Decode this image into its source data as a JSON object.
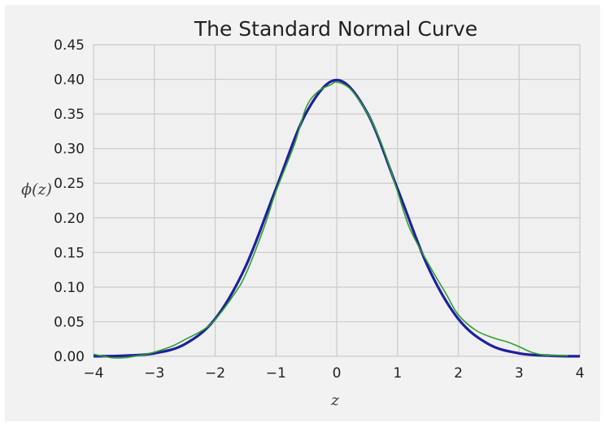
{
  "chart_data": {
    "type": "line",
    "title": "The Standard Normal Curve",
    "xlabel": "z",
    "ylabel": "ϕ(z)",
    "xlim": [
      -4,
      4
    ],
    "ylim": [
      0,
      0.45
    ],
    "x_ticks": [
      -4,
      -3,
      -2,
      -1,
      0,
      1,
      2,
      3,
      4
    ],
    "x_tick_labels": [
      "−4",
      "−3",
      "−2",
      "−1",
      "0",
      "1",
      "2",
      "3",
      "4"
    ],
    "y_ticks": [
      0,
      0.05,
      0.1,
      0.15,
      0.2,
      0.25,
      0.3,
      0.35,
      0.4,
      0.45
    ],
    "y_tick_labels": [
      "0.00",
      "0.05",
      "0.10",
      "0.15",
      "0.20",
      "0.25",
      "0.30",
      "0.35",
      "0.40",
      "0.45"
    ],
    "grid": true,
    "background": "#f0f0f0",
    "series": [
      {
        "color": "#1f1f9e",
        "x": [
          -4,
          -3.5,
          -3,
          -2.5,
          -2,
          -1.5,
          -1,
          -0.5,
          0,
          0.5,
          1,
          1.5,
          2,
          2.5,
          3,
          3.5,
          4
        ],
        "y": [
          0.0001,
          0.0009,
          0.0044,
          0.0175,
          0.054,
          0.1295,
          0.242,
          0.352,
          0.399,
          0.352,
          0.242,
          0.1295,
          0.054,
          0.0175,
          0.0044,
          0.0009,
          0.0001
        ]
      },
      {
        "color": "#2ca02c",
        "x": [
          -4,
          -3.7,
          -3.5,
          -3.2,
          -3,
          -2.7,
          -2.5,
          -2.2,
          -2,
          -1.7,
          -1.5,
          -1.2,
          -1,
          -0.7,
          -0.5,
          -0.3,
          -0.1,
          0,
          0.2,
          0.4,
          0.6,
          0.8,
          1,
          1.2,
          1.5,
          1.8,
          2,
          2.3,
          2.6,
          2.8,
          3,
          3.2,
          3.4,
          3.6,
          3.8
        ],
        "y": [
          0.003,
          -0.002,
          -0.002,
          0.002,
          0.006,
          0.015,
          0.024,
          0.038,
          0.053,
          0.088,
          0.118,
          0.185,
          0.238,
          0.305,
          0.36,
          0.383,
          0.392,
          0.396,
          0.388,
          0.366,
          0.335,
          0.292,
          0.238,
          0.185,
          0.135,
          0.09,
          0.06,
          0.037,
          0.026,
          0.021,
          0.014,
          0.006,
          0.002,
          0.001,
          0.001
        ]
      }
    ]
  }
}
